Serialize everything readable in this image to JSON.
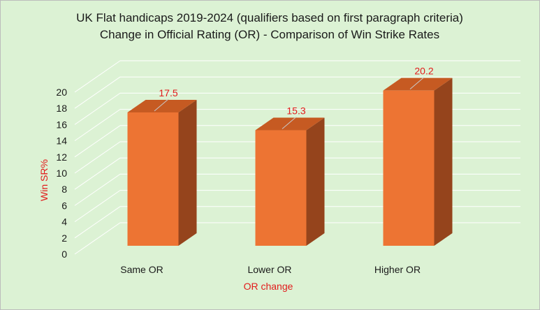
{
  "chart_data": {
    "type": "bar",
    "title": [
      "UK Flat handicaps 2019-2024 (qualifiers based on first paragraph criteria)",
      "Change in Official Rating (OR) - Comparison of Win Strike Rates"
    ],
    "categories": [
      "Same OR",
      "Lower OR",
      "Higher OR"
    ],
    "values": [
      17.5,
      15.3,
      20.2
    ],
    "data_labels": [
      "17.5",
      "15.3",
      "20.2"
    ],
    "xlabel": "OR change",
    "ylabel": "Win SR%",
    "ylim": [
      0,
      20
    ],
    "yticks": [
      "0",
      "2",
      "4",
      "6",
      "8",
      "10",
      "12",
      "14",
      "16",
      "18",
      "20"
    ],
    "grid": true,
    "three_d": true,
    "colors": {
      "bar_front": "#ed7433",
      "bar_top": "#c65a22",
      "bar_side": "#95441c",
      "axis_title": "#e21b1b",
      "data_label": "#e21b1b",
      "background": "#dcf2d4",
      "gridline": "#ffffff"
    }
  }
}
